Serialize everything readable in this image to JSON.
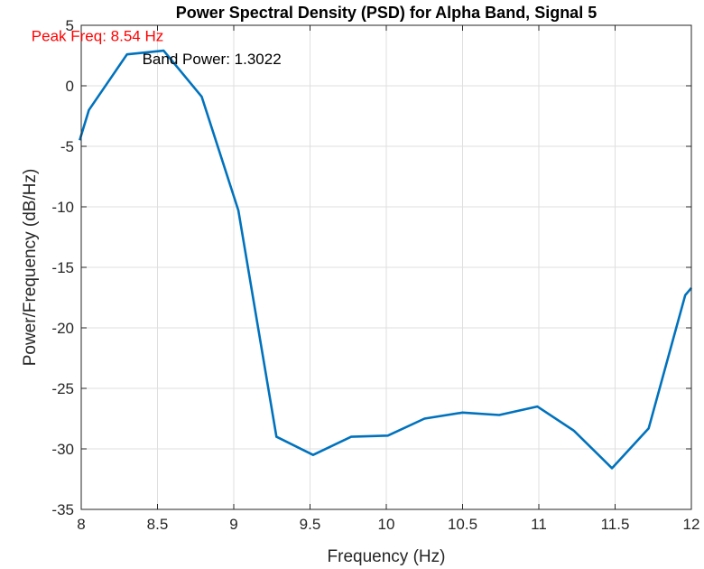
{
  "chart_data": {
    "type": "line",
    "title": "Power Spectral Density (PSD) for Alpha Band, Signal 5",
    "xlabel": "Frequency (Hz)",
    "ylabel": "Power/Frequency (dB/Hz)",
    "xlim": [
      8,
      12
    ],
    "ylim": [
      -35,
      5
    ],
    "xticks": [
      8,
      8.5,
      9,
      9.5,
      10,
      10.5,
      11,
      11.5,
      12
    ],
    "xtick_labels": [
      "8",
      "8.5",
      "9",
      "9.5",
      "10",
      "10.5",
      "11",
      "11.5",
      "12"
    ],
    "yticks": [
      5,
      0,
      -5,
      -10,
      -15,
      -20,
      -25,
      -30,
      -35
    ],
    "ytick_labels": [
      "5",
      "0",
      "-5",
      "-10",
      "-15",
      "-20",
      "-25",
      "-30",
      "-35"
    ],
    "grid": true,
    "series": [
      {
        "name": "PSD",
        "color": "#0072BD",
        "x": [
          7.99,
          8.05,
          8.3,
          8.54,
          8.79,
          9.03,
          9.28,
          9.52,
          9.77,
          10.01,
          10.25,
          10.5,
          10.74,
          10.99,
          11.23,
          11.48,
          11.72,
          11.96,
          12.0
        ],
        "y": [
          -4.5,
          -2.0,
          2.6,
          2.9,
          -0.9,
          -10.3,
          -29.0,
          -30.5,
          -29.0,
          -28.9,
          -27.5,
          -27.0,
          -27.2,
          -26.5,
          -28.5,
          -31.6,
          -28.3,
          -17.3,
          -16.7
        ]
      }
    ],
    "annotations": [
      {
        "name": "peak-freq",
        "text": "Peak Freq: 8.54 Hz",
        "x": 8.54,
        "y": 3.7,
        "color": "#FF0000",
        "anchor": "end"
      },
      {
        "name": "band-power",
        "text": "Band Power: 1.3022",
        "x": 8.4,
        "y": 1.8,
        "color": "#000000",
        "anchor": "start"
      }
    ]
  }
}
